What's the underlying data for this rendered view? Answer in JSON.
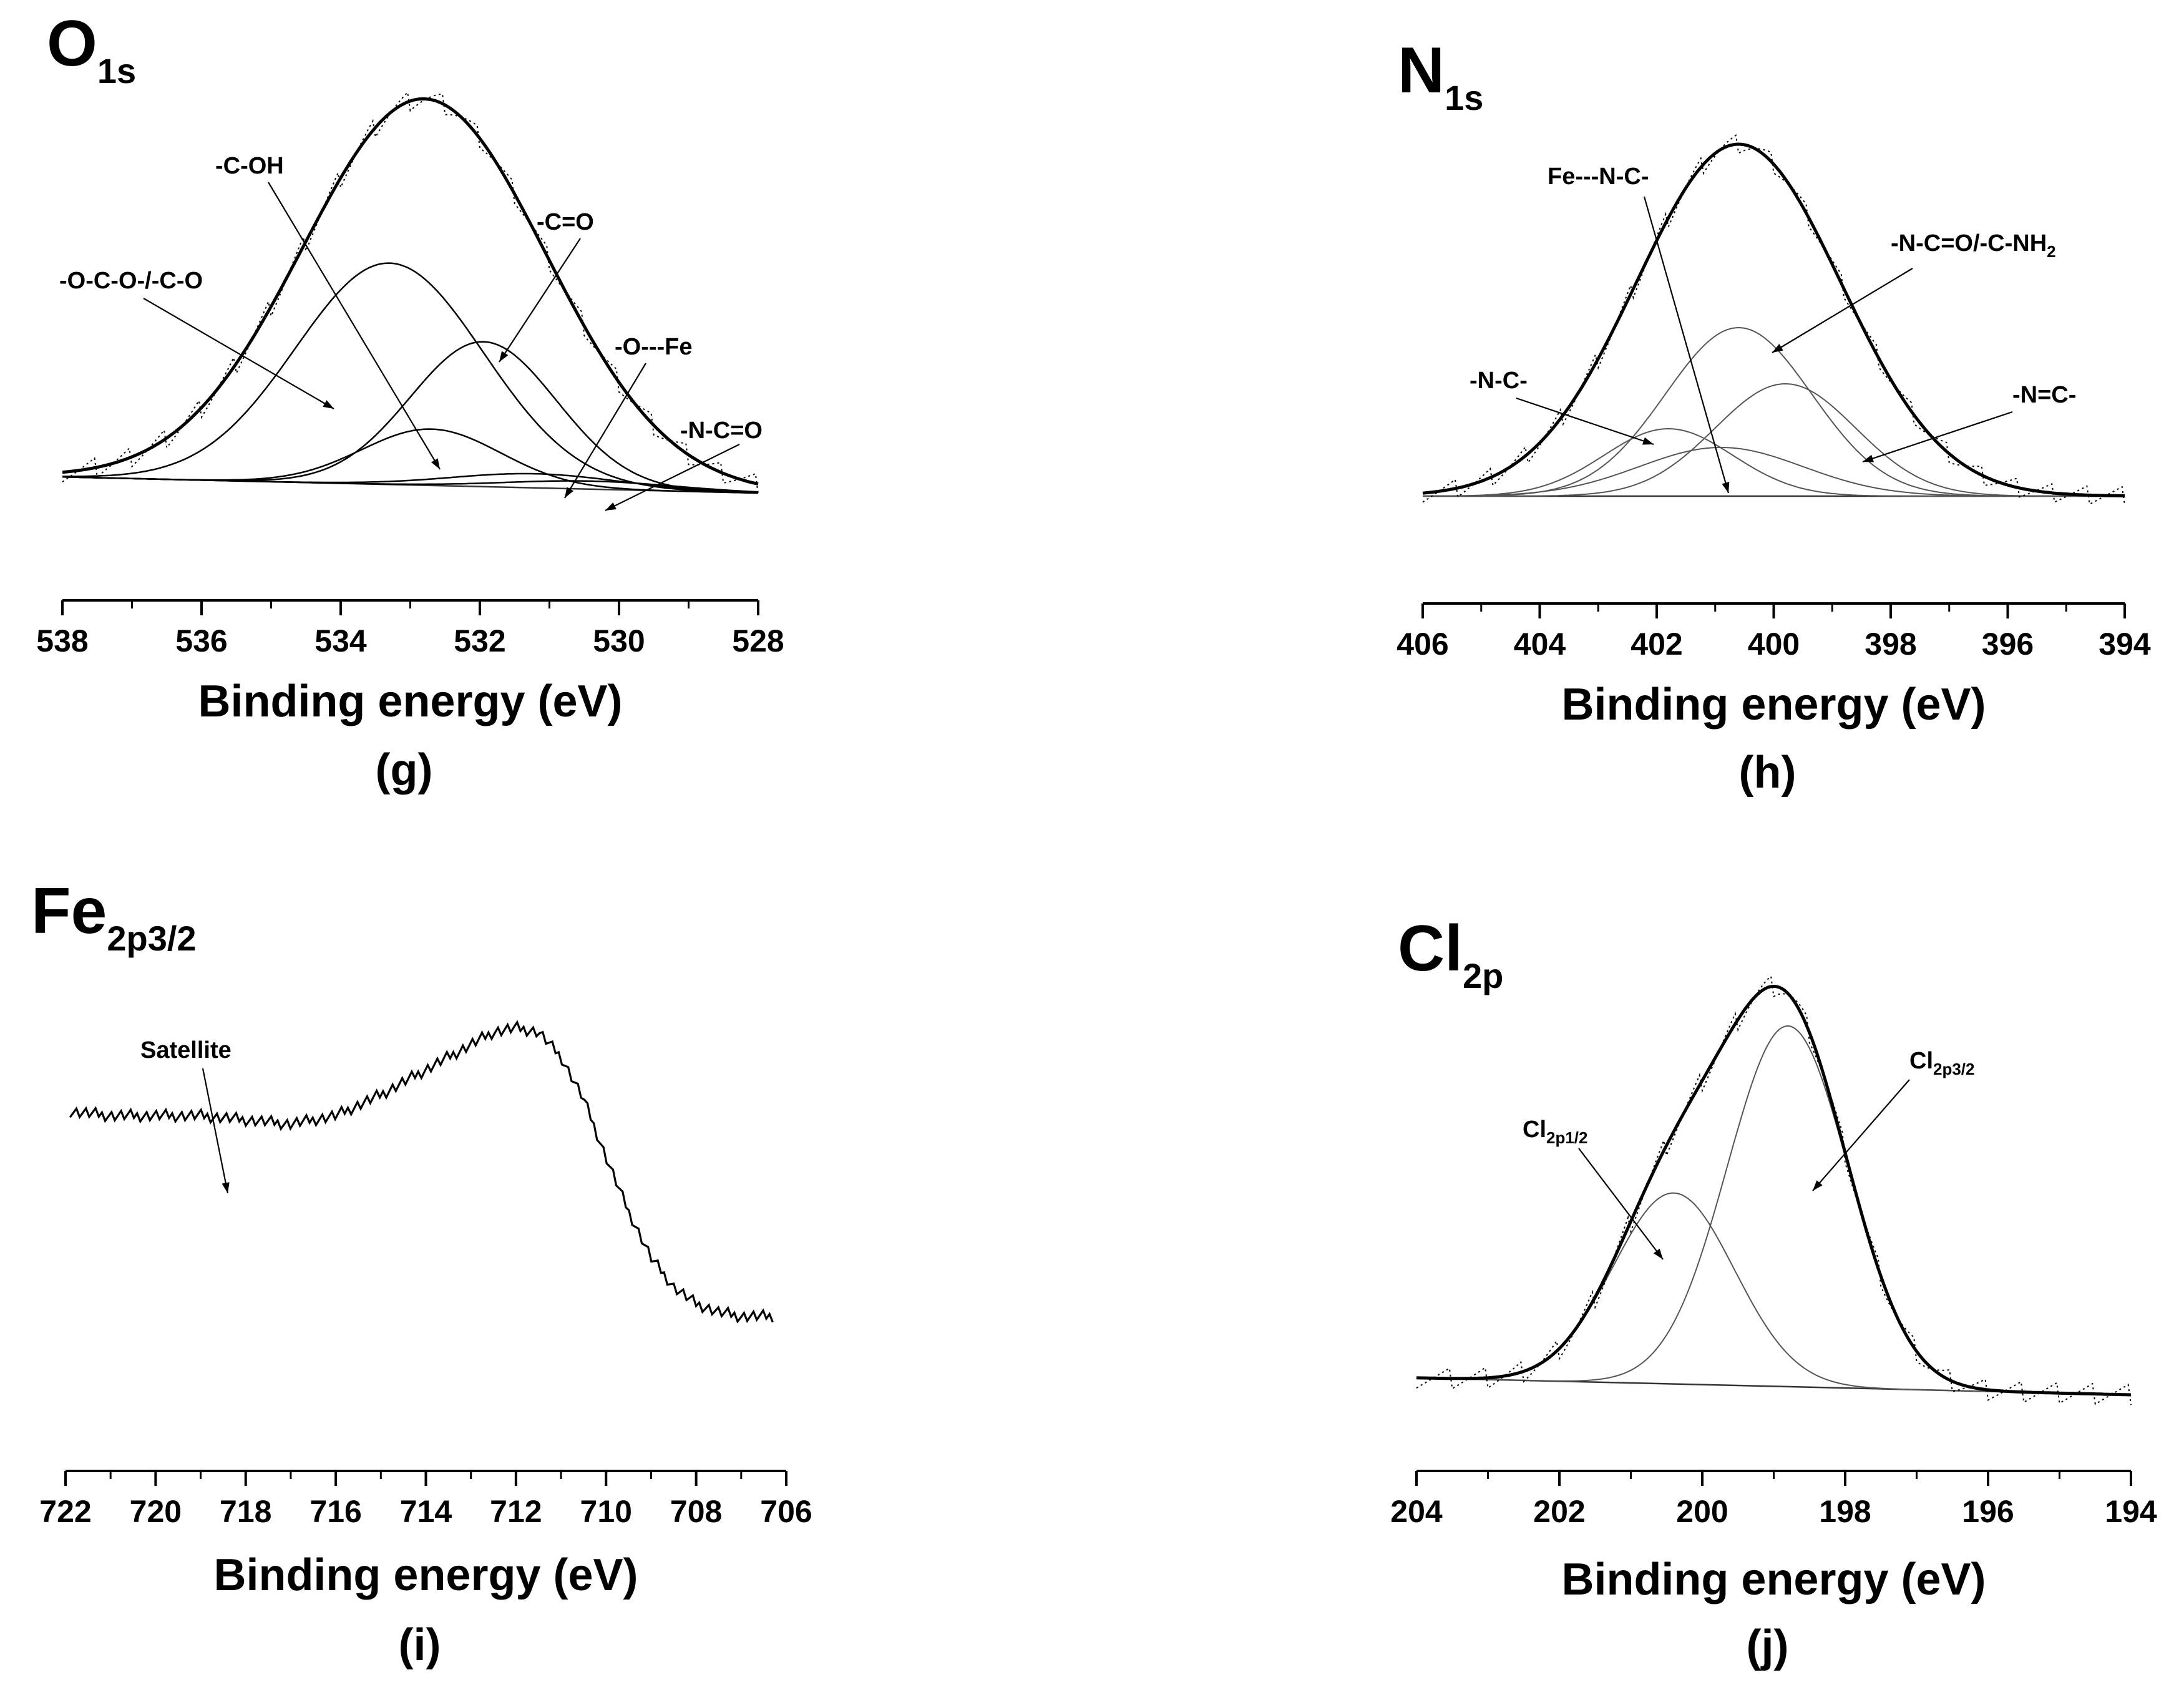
{
  "chart_data": [
    {
      "panel": "(g)",
      "type": "line",
      "core_level": {
        "element": "O",
        "orbital": "1s"
      },
      "xlabel": "Binding energy (eV)",
      "ylabel": "",
      "xlim": [
        538,
        528
      ],
      "x_reversed": true,
      "xticks": [
        538,
        536,
        534,
        532,
        530,
        528
      ],
      "ylim": [
        0,
        1
      ],
      "grid": false,
      "baseline": {
        "x": [
          538,
          528
        ],
        "y": [
          0.04,
          0.0
        ]
      },
      "envelope": {
        "center": 532.8,
        "height": 0.96,
        "sigma": 1.75
      },
      "components": [
        {
          "label": "-O-C-O-/-C-O",
          "center": 533.3,
          "height": 0.55,
          "sigma": 1.35
        },
        {
          "label": "-C=O",
          "center": 531.95,
          "height": 0.36,
          "sigma": 1.05
        },
        {
          "label": "-C-OH",
          "center": 532.7,
          "height": 0.14,
          "sigma": 1.0
        },
        {
          "label": "-O---Fe",
          "center": 531.2,
          "height": 0.035,
          "sigma": 1.2
        },
        {
          "label": "-N-C=O",
          "center": 530.4,
          "height": 0.02,
          "sigma": 1.2
        }
      ]
    },
    {
      "panel": "(h)",
      "type": "line",
      "core_level": {
        "element": "N",
        "orbital": "1s"
      },
      "xlabel": "Binding energy (eV)",
      "ylabel": "",
      "xlim": [
        406,
        394
      ],
      "x_reversed": true,
      "xticks": [
        406,
        404,
        402,
        400,
        398,
        396,
        394
      ],
      "ylim": [
        0,
        1
      ],
      "grid": false,
      "baseline": {
        "x": [
          406,
          394
        ],
        "y": [
          0.0,
          0.0
        ]
      },
      "envelope": {
        "center": 400.6,
        "height": 0.94,
        "sigma": 1.75
      },
      "components": [
        {
          "label": "-N-C=O/-C-NH2",
          "label_parts": [
            "-N-C=O/-C-NH",
            "2"
          ],
          "center": 400.6,
          "height": 0.45,
          "sigma": 1.25
        },
        {
          "label": "-N=C-",
          "center": 399.8,
          "height": 0.3,
          "sigma": 1.2
        },
        {
          "label": "-N-C-",
          "center": 401.8,
          "height": 0.18,
          "sigma": 1.1
        },
        {
          "label": "Fe---N-C-",
          "center": 400.9,
          "height": 0.13,
          "sigma": 1.4
        }
      ]
    },
    {
      "panel": "(i)",
      "type": "line",
      "core_level": {
        "element": "Fe",
        "orbital": "2p3/2"
      },
      "xlabel": "Binding energy (eV)",
      "ylabel": "",
      "xlim": [
        722,
        706
      ],
      "x_reversed": true,
      "xticks": [
        722,
        720,
        718,
        716,
        714,
        712,
        710,
        708,
        706
      ],
      "ylim": [
        0,
        1
      ],
      "grid": false,
      "annotations": [
        {
          "label": "Satellite",
          "at_x": 718.2
        }
      ],
      "spectrum": {
        "x": [
          721.9,
          721.0,
          720.0,
          719.0,
          718.0,
          717.0,
          716.0,
          715.0,
          714.0,
          713.0,
          712.5,
          712.0,
          711.5,
          711.0,
          710.5,
          710.0,
          709.5,
          709.0,
          708.5,
          708.0,
          707.5,
          707.0,
          706.5,
          706.3
        ],
        "y": [
          0.73,
          0.72,
          0.72,
          0.72,
          0.71,
          0.7,
          0.72,
          0.77,
          0.83,
          0.89,
          0.92,
          0.93,
          0.92,
          0.86,
          0.76,
          0.62,
          0.49,
          0.38,
          0.31,
          0.27,
          0.25,
          0.24,
          0.24,
          0.24
        ]
      }
    },
    {
      "panel": "(j)",
      "type": "line",
      "core_level": {
        "element": "Cl",
        "orbital": "2p"
      },
      "xlabel": "Binding energy (eV)",
      "ylabel": "",
      "xlim": [
        204,
        194
      ],
      "x_reversed": true,
      "xticks": [
        204,
        202,
        200,
        198,
        196,
        194
      ],
      "ylim": [
        0,
        1
      ],
      "grid": false,
      "baseline": {
        "x": [
          204,
          194
        ],
        "y": [
          0.04,
          0.0
        ]
      },
      "envelope": null,
      "components": [
        {
          "label": "Cl2p3/2",
          "label_parts": [
            "Cl",
            "2p3/2"
          ],
          "center": 198.8,
          "height": 0.85,
          "sigma": 0.85
        },
        {
          "label": "Cl2p1/2",
          "label_parts": [
            "Cl",
            "2p1/2"
          ],
          "center": 200.4,
          "height": 0.45,
          "sigma": 0.85
        }
      ]
    }
  ]
}
